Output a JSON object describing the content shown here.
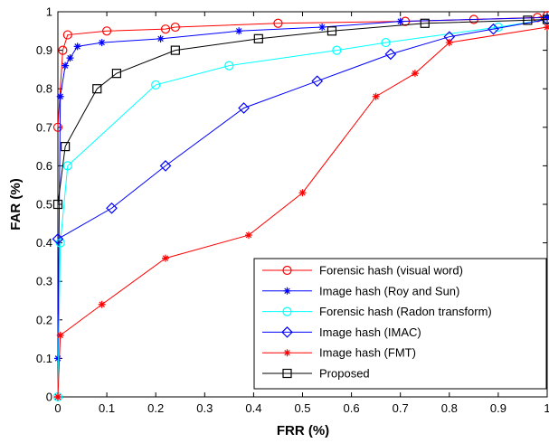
{
  "chart_data": {
    "type": "line",
    "title": "",
    "xlabel": "FRR (%)",
    "ylabel": "FAR (%)",
    "xlim": [
      0,
      1
    ],
    "ylim": [
      0,
      1
    ],
    "xticks": [
      "0",
      "0.1",
      "0.2",
      "0.3",
      "0.4",
      "0.5",
      "0.6",
      "0.7",
      "0.8",
      "0.9",
      "1"
    ],
    "yticks": [
      "0",
      "0.1",
      "0.2",
      "0.3",
      "0.4",
      "0.5",
      "0.6",
      "0.7",
      "0.8",
      "0.9",
      "1"
    ],
    "grid": false,
    "legend_position": "bottom-right",
    "series": [
      {
        "name": "Forensic hash (visual word)",
        "color": "#ff0000",
        "marker": "circle",
        "points": [
          [
            0,
            0.7
          ],
          [
            0.01,
            0.9
          ],
          [
            0.02,
            0.94
          ],
          [
            0.1,
            0.95
          ],
          [
            0.22,
            0.955
          ],
          [
            0.24,
            0.96
          ],
          [
            0.45,
            0.97
          ],
          [
            0.71,
            0.975
          ],
          [
            0.85,
            0.98
          ],
          [
            0.98,
            0.985
          ],
          [
            1,
            0.99
          ]
        ]
      },
      {
        "name": "Image hash (Roy and Sun)",
        "color": "#0000ff",
        "marker": "star",
        "points": [
          [
            0,
            0
          ],
          [
            0,
            0.1
          ],
          [
            0.005,
            0.78
          ],
          [
            0.015,
            0.86
          ],
          [
            0.025,
            0.88
          ],
          [
            0.04,
            0.91
          ],
          [
            0.09,
            0.92
          ],
          [
            0.21,
            0.93
          ],
          [
            0.37,
            0.95
          ],
          [
            0.54,
            0.96
          ],
          [
            0.7,
            0.975
          ],
          [
            1,
            0.985
          ]
        ]
      },
      {
        "name": "Forensic hash (Radon transform)",
        "color": "#00ffff",
        "marker": "circle",
        "points": [
          [
            0,
            0
          ],
          [
            0.005,
            0.4
          ],
          [
            0.02,
            0.6
          ],
          [
            0.2,
            0.81
          ],
          [
            0.35,
            0.86
          ],
          [
            0.57,
            0.9
          ],
          [
            0.67,
            0.92
          ],
          [
            0.9,
            0.96
          ],
          [
            1,
            0.98
          ]
        ]
      },
      {
        "name": "Image hash (IMAC)",
        "color": "#0000ff",
        "marker": "diamond",
        "points": [
          [
            0,
            0.41
          ],
          [
            0.11,
            0.49
          ],
          [
            0.22,
            0.6
          ],
          [
            0.38,
            0.75
          ],
          [
            0.53,
            0.82
          ],
          [
            0.68,
            0.89
          ],
          [
            0.8,
            0.935
          ],
          [
            0.89,
            0.955
          ],
          [
            1,
            0.98
          ]
        ]
      },
      {
        "name": "Image hash (FMT)",
        "color": "#ff0000",
        "marker": "star",
        "points": [
          [
            0,
            0
          ],
          [
            0.005,
            0.16
          ],
          [
            0.09,
            0.24
          ],
          [
            0.22,
            0.36
          ],
          [
            0.39,
            0.42
          ],
          [
            0.5,
            0.53
          ],
          [
            0.65,
            0.78
          ],
          [
            0.73,
            0.84
          ],
          [
            0.8,
            0.92
          ],
          [
            1,
            0.96
          ]
        ]
      },
      {
        "name": "Proposed",
        "color": "#000000",
        "marker": "square",
        "points": [
          [
            0,
            0.5
          ],
          [
            0.015,
            0.65
          ],
          [
            0.08,
            0.8
          ],
          [
            0.12,
            0.84
          ],
          [
            0.24,
            0.9
          ],
          [
            0.41,
            0.93
          ],
          [
            0.56,
            0.95
          ],
          [
            0.75,
            0.97
          ],
          [
            0.96,
            0.978
          ],
          [
            1,
            0.98
          ]
        ]
      }
    ]
  }
}
